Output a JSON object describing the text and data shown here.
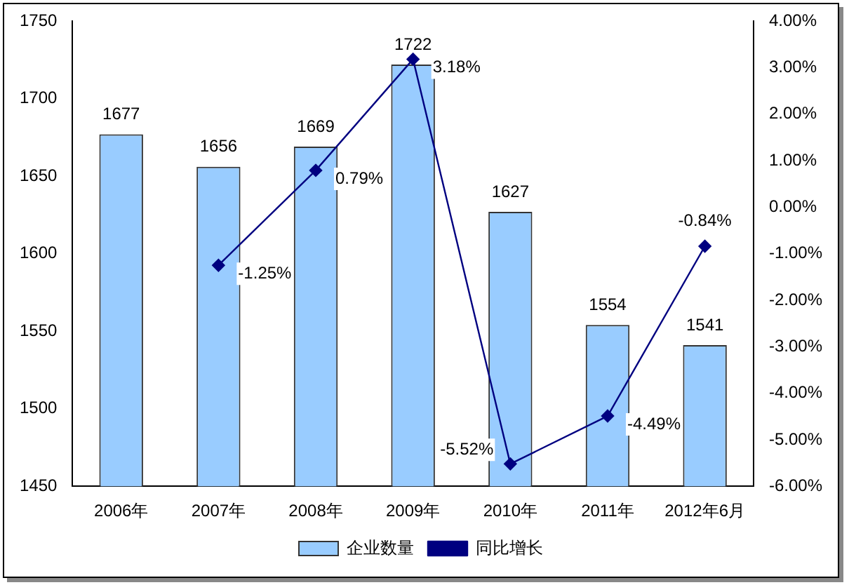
{
  "chart_data": {
    "type": "bar",
    "categories": [
      "2006年",
      "2007年",
      "2008年",
      "2009年",
      "2010年",
      "2011年",
      "2012年6月"
    ],
    "series": [
      {
        "name": "企业数量",
        "color": "#99ccff",
        "values": [
          1677,
          1656,
          1669,
          1722,
          1627,
          1554,
          1541
        ],
        "value_labels": [
          "1677",
          "1656",
          "1669",
          "1722",
          "1627",
          "1554",
          "1541"
        ]
      },
      {
        "name": "同比增长",
        "type": "line",
        "axis": "y2",
        "color": "#000080",
        "marker": "diamond",
        "values": [
          null,
          -1.25,
          0.79,
          3.18,
          -5.52,
          -4.49,
          -0.84
        ],
        "value_labels": [
          null,
          "-1.25%",
          "0.79%",
          "3.18%",
          "-5.52%",
          "-4.49%",
          "-0.84%"
        ]
      }
    ],
    "ylim": [
      1450,
      1750
    ],
    "yticks": [
      1450,
      1500,
      1550,
      1600,
      1650,
      1700,
      1750
    ],
    "y2lim": [
      -6,
      4
    ],
    "y2ticks": [
      {
        "value": -6,
        "label": "-6.00%"
      },
      {
        "value": -5,
        "label": "-5.00%"
      },
      {
        "value": -4,
        "label": "-4.00%"
      },
      {
        "value": -3,
        "label": "-3.00%"
      },
      {
        "value": -2,
        "label": "-2.00%"
      },
      {
        "value": -1,
        "label": "-1.00%"
      },
      {
        "value": 0,
        "label": "0.00%"
      },
      {
        "value": 1,
        "label": "1.00%"
      },
      {
        "value": 2,
        "label": "2.00%"
      },
      {
        "value": 3,
        "label": "3.00%"
      },
      {
        "value": 4,
        "label": "4.00%"
      }
    ],
    "grid": false,
    "legend": "bottom"
  }
}
